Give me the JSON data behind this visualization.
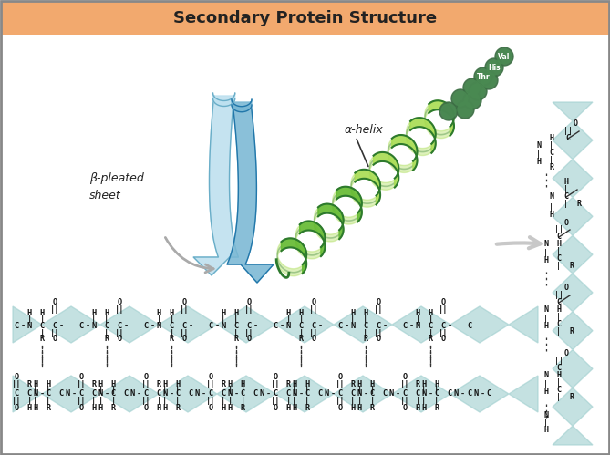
{
  "title": "Secondary Protein Structure",
  "title_bg": "#f2a96e",
  "title_color": "#222222",
  "bg_color": "#ffffff",
  "border_color": "#888888",
  "teal_color": "#9ecece",
  "helix_light": "#aadd55",
  "helix_mid": "#66bb33",
  "helix_dark": "#2d7a2d",
  "bead_outer": "#3d7045",
  "bead_inner": "#4a8a52",
  "sheet_light": "#aacfe0",
  "sheet_dark": "#4488aa",
  "sheet_dark2": "#1a6688",
  "gray_arrow": "#c0c0c0",
  "alpha_helix_label": "α-helix",
  "beta_sheet_label": "β-pleated\nsheet",
  "val_label": "Val",
  "his_label": "His",
  "thr_label": "Thr"
}
